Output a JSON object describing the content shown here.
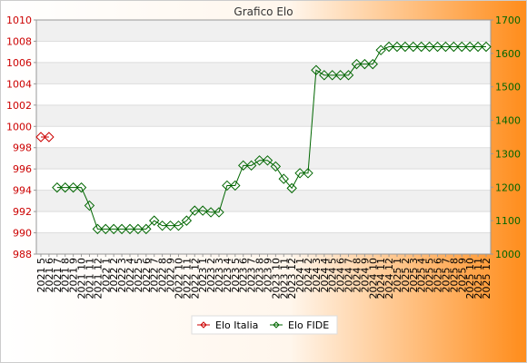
{
  "chart_data": {
    "type": "line",
    "title": "Grafico Elo",
    "categories": [
      "2021 5",
      "2021 6",
      "2021 7",
      "2021 8",
      "2021 9",
      "2021 10",
      "2021 11",
      "2021 12",
      "2022 1",
      "2022 2",
      "2022 3",
      "2022 4",
      "2022 5",
      "2022 6",
      "2022 7",
      "2022 8",
      "2022 9",
      "2022 10",
      "2022 11",
      "2022 12",
      "2023 1",
      "2023 2",
      "2023 3",
      "2023 4",
      "2023 5",
      "2023 6",
      "2023 7",
      "2023 8",
      "2023 9",
      "2023 10",
      "2023 11",
      "2023 12",
      "2024 1",
      "2024 2",
      "2024 3",
      "2024 4",
      "2024 5",
      "2024 6",
      "2024 7",
      "2024 8",
      "2024 9",
      "2024 10",
      "2024 11",
      "2024 12",
      "2025 1",
      "2025 2",
      "2025 3",
      "2025 4",
      "2025 5",
      "2025 6",
      "2025 7",
      "2025 8",
      "2025 9",
      "2025 10",
      "2025 11",
      "2025 12"
    ],
    "y_left": {
      "min": 988,
      "max": 1010,
      "ticks": [
        988,
        990,
        992,
        994,
        996,
        998,
        1000,
        1002,
        1004,
        1006,
        1008,
        1010
      ],
      "color": "#cc0000"
    },
    "y_right": {
      "min": 1000,
      "max": 1700,
      "ticks": [
        1000,
        1100,
        1200,
        1300,
        1400,
        1500,
        1600,
        1700
      ],
      "color": "#006600"
    },
    "grid": true,
    "legend_position": "bottom",
    "series": [
      {
        "name": "Elo Italia",
        "axis": "left",
        "color": "#cc0000",
        "values": [
          999,
          999,
          null,
          null,
          null,
          null,
          null,
          null,
          null,
          null,
          null,
          null,
          null,
          null,
          null,
          null,
          null,
          null,
          null,
          null,
          null,
          null,
          null,
          null,
          null,
          null,
          null,
          null,
          null,
          null,
          null,
          null,
          null,
          null,
          null,
          null,
          null,
          null,
          null,
          null,
          null,
          null,
          null,
          null,
          null,
          null,
          null,
          null,
          null,
          null,
          null,
          null,
          null,
          null,
          null,
          null
        ]
      },
      {
        "name": "Elo FIDE",
        "axis": "right",
        "color": "#006600",
        "values": [
          null,
          null,
          1199,
          1199,
          1199,
          1199,
          1145,
          1075,
          1075,
          1075,
          1075,
          1075,
          1075,
          1075,
          1100,
          1085,
          1085,
          1085,
          1100,
          1130,
          1130,
          1125,
          1125,
          1205,
          1205,
          1265,
          1265,
          1280,
          1280,
          1262,
          1225,
          1197,
          1242,
          1242,
          1550,
          1535,
          1535,
          1535,
          1535,
          1568,
          1568,
          1568,
          1610,
          1620,
          1620,
          1620,
          1620,
          1620,
          1620,
          1620,
          1620,
          1620,
          1620,
          1620,
          1620,
          1620
        ]
      }
    ]
  }
}
